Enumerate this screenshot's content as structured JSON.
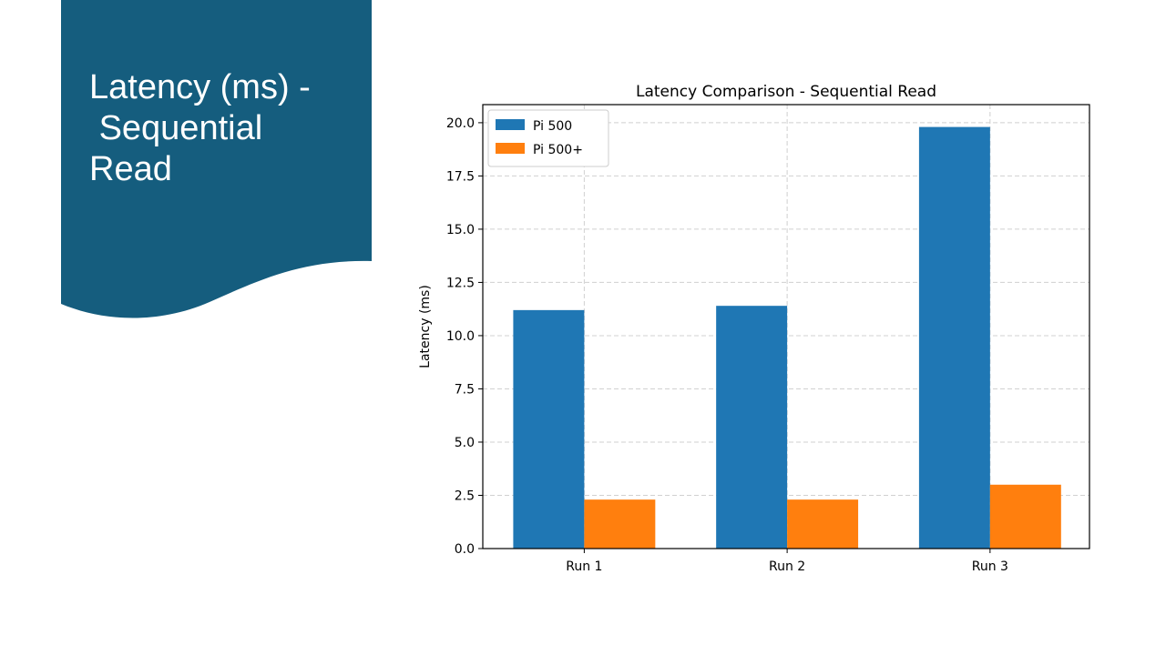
{
  "slide": {
    "title": "Latency (ms) -\n Sequential\nRead",
    "banner_color": "#155d7e"
  },
  "chart_data": {
    "type": "bar",
    "title": "Latency Comparison - Sequential Read",
    "xlabel": "",
    "ylabel": "Latency (ms)",
    "categories": [
      "Run 1",
      "Run 2",
      "Run 3"
    ],
    "series": [
      {
        "name": "Pi 500",
        "values": [
          11.2,
          11.4,
          19.8
        ],
        "color": "#1f77b4"
      },
      {
        "name": "Pi 500+",
        "values": [
          2.3,
          2.3,
          3.0
        ],
        "color": "#ff7f0e"
      }
    ],
    "ylim": [
      0,
      20.85
    ],
    "yticks": [
      "0.0",
      "2.5",
      "5.0",
      "7.5",
      "10.0",
      "12.5",
      "15.0",
      "17.5",
      "20.0"
    ],
    "grid": true,
    "legend": "top-left"
  }
}
